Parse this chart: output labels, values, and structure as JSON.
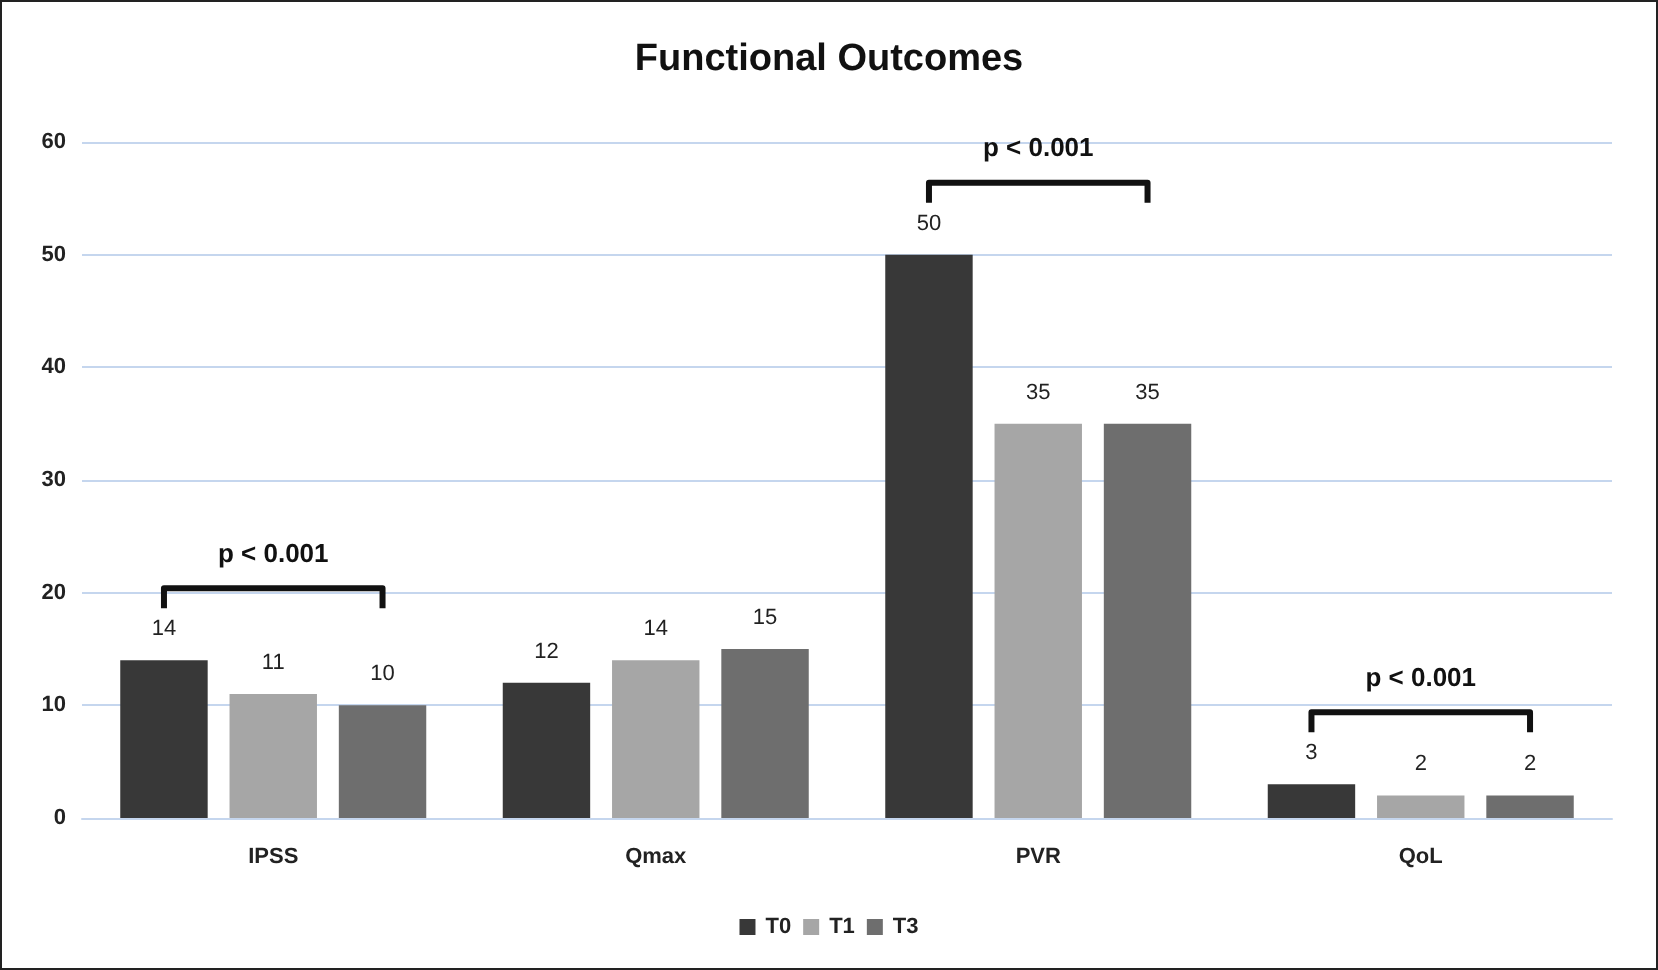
{
  "chart_data": {
    "type": "bar",
    "title": "Functional Outcomes",
    "categories": [
      "IPSS",
      "Qmax",
      "PVR",
      "QoL"
    ],
    "series": [
      {
        "name": "T0",
        "color": "#383838",
        "values": [
          14,
          12,
          50,
          3
        ]
      },
      {
        "name": "T1",
        "color": "#a6a6a6",
        "values": [
          11,
          14,
          35,
          2
        ]
      },
      {
        "name": "T3",
        "color": "#6e6e6e",
        "values": [
          10,
          15,
          35,
          2
        ]
      }
    ],
    "ylim": [
      0,
      60
    ],
    "yticks": [
      0,
      10,
      20,
      30,
      40,
      50,
      60
    ],
    "grid": "y",
    "legend": "bottom",
    "data_labels": true,
    "annotations": [
      "p < 0.001",
      "p < 0.001",
      "p < 0.001"
    ]
  }
}
